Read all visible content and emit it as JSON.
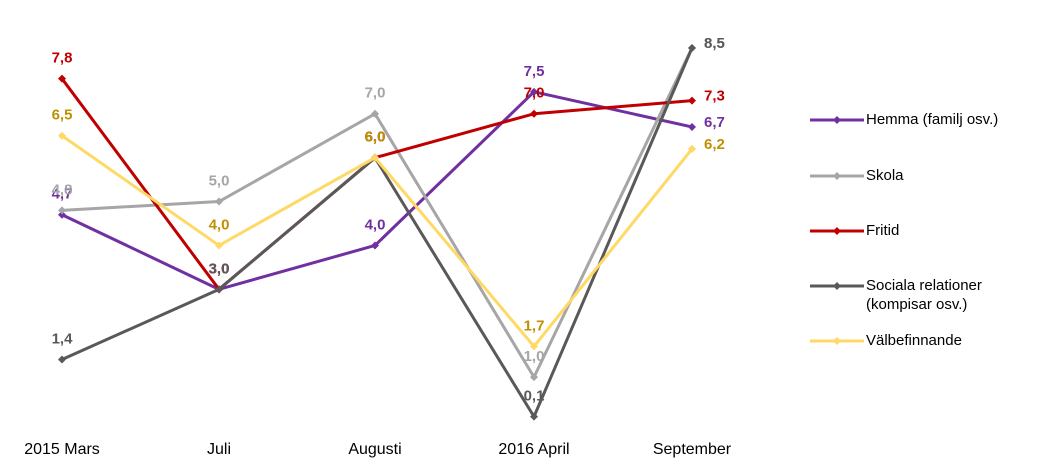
{
  "chart_data": {
    "type": "line",
    "categories": [
      "2015 Mars",
      "Juli",
      "Augusti",
      "2016 April",
      "September"
    ],
    "ylim": [
      0,
      9
    ],
    "legend": "right",
    "series": [
      {
        "name": "Hemma (familj osv.)",
        "color": "#7030a0",
        "label_color": "#7030a0",
        "values": [
          4.7,
          3.0,
          4.0,
          7.5,
          6.7
        ],
        "value_labels": [
          "4,7",
          "3,0",
          "4,0",
          "7,5",
          "6,7"
        ]
      },
      {
        "name": "Skola",
        "color": "#a6a6a6",
        "label_color": "#a6a6a6",
        "values": [
          4.8,
          5.0,
          7.0,
          1.0,
          8.5
        ],
        "value_labels": [
          "4,8",
          "5,0",
          "7,0",
          "1,0",
          "8,5"
        ]
      },
      {
        "name": "Fritid",
        "color": "#c00000",
        "label_color": "#c00000",
        "values": [
          7.8,
          3.0,
          6.0,
          7.0,
          7.3
        ],
        "value_labels": [
          "7,8",
          "3,0",
          "6,0",
          "7,0",
          "7,3"
        ]
      },
      {
        "name": "Sociala relationer (kompisar osv.)",
        "color": "#595959",
        "label_color": "#595959",
        "values": [
          1.4,
          3.0,
          6.0,
          0.1,
          8.5
        ],
        "value_labels": [
          "1,4",
          "3,0",
          "6,0",
          "0,1",
          "8,5"
        ]
      },
      {
        "name": "Välbefinnande",
        "color": "#ffd966",
        "label_color": "#bf9000",
        "values": [
          6.5,
          4.0,
          6.0,
          1.7,
          6.2
        ],
        "value_labels": [
          "6,5",
          "4,0",
          "6,0",
          "1,7",
          "6,2"
        ]
      }
    ]
  }
}
